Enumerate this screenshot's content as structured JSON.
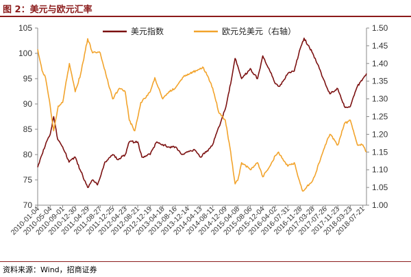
{
  "title": "图 2：美元与欧元汇率",
  "source": "资料来源：Wind，招商证券",
  "chart_data": {
    "type": "line",
    "title": "图 2：美元与欧元汇率",
    "legend_position": "top",
    "grid": false,
    "x_ticks": [
      "2010-01-04",
      "2010-05-04",
      "2010-09-01",
      "2010-12-30",
      "2011-04-29",
      "2011-08-27",
      "2011-12-25",
      "2012-04-23",
      "2012-08-21",
      "2012-12-19",
      "2013-04-18",
      "2013-08-16",
      "2013-12-14",
      "2014-04-13",
      "2014-08-11",
      "2014-12-09",
      "2015-04-08",
      "2015-08-06",
      "2015-12-04",
      "2016-04-02",
      "2016-07-31",
      "2016-11-28",
      "2017-03-28",
      "2017-07-26",
      "2017-11-23",
      "2018-03-23",
      "2018-07-21"
    ],
    "y_left": {
      "ylim": [
        70,
        105
      ],
      "ticks": [
        "70",
        "75",
        "80",
        "85",
        "90",
        "95",
        "100",
        "105"
      ]
    },
    "y_right": {
      "ylim": [
        1.0,
        1.5
      ],
      "ticks": [
        "1.00",
        "1.05",
        "1.10",
        "1.15",
        "1.20",
        "1.25",
        "1.30",
        "1.35",
        "1.40",
        "1.45",
        "1.50"
      ]
    },
    "series": [
      {
        "name": "美元指数",
        "axis": "left",
        "color": "#7B1010",
        "x": [
          "2010-01-04",
          "2010-03-01",
          "2010-05-04",
          "2010-06-07",
          "2010-07-15",
          "2010-09-01",
          "2010-11-01",
          "2010-12-30",
          "2011-02-15",
          "2011-04-29",
          "2011-06-15",
          "2011-08-01",
          "2011-08-27",
          "2011-10-10",
          "2011-12-25",
          "2012-02-10",
          "2012-04-23",
          "2012-06-01",
          "2012-08-21",
          "2012-09-30",
          "2012-12-19",
          "2013-02-20",
          "2013-04-18",
          "2013-06-15",
          "2013-08-16",
          "2013-10-20",
          "2013-12-14",
          "2014-02-15",
          "2014-04-13",
          "2014-06-10",
          "2014-08-11",
          "2014-10-10",
          "2014-12-09",
          "2015-01-30",
          "2015-03-13",
          "2015-04-08",
          "2015-05-15",
          "2015-08-06",
          "2015-10-15",
          "2015-12-04",
          "2016-02-01",
          "2016-04-02",
          "2016-05-15",
          "2016-07-31",
          "2016-10-01",
          "2016-11-28",
          "2017-01-03",
          "2017-03-28",
          "2017-05-30",
          "2017-07-26",
          "2017-09-08",
          "2017-11-23",
          "2018-01-25",
          "2018-03-23",
          "2018-05-30",
          "2018-07-21",
          "2018-08-25"
        ],
        "values": [
          77.5,
          81.0,
          84.0,
          87.5,
          83.0,
          81.5,
          78.5,
          79.5,
          77.0,
          73.5,
          75.0,
          74.0,
          75.5,
          78.5,
          80.0,
          79.0,
          80.0,
          82.5,
          82.5,
          79.5,
          80.0,
          82.5,
          82.0,
          81.5,
          81.5,
          80.0,
          80.5,
          81.0,
          79.5,
          80.5,
          82.0,
          85.5,
          89.0,
          94.0,
          99.0,
          97.5,
          95.0,
          97.0,
          95.0,
          99.5,
          97.0,
          94.0,
          93.5,
          96.0,
          96.5,
          101.0,
          103.0,
          100.0,
          97.0,
          94.0,
          92.0,
          93.0,
          89.5,
          89.5,
          93.5,
          95.0,
          96.0
        ]
      },
      {
        "name": "欧元兑美元（右轴）",
        "axis": "right",
        "color": "#F2A32B",
        "x": [
          "2010-01-04",
          "2010-02-15",
          "2010-03-20",
          "2010-05-04",
          "2010-06-07",
          "2010-07-20",
          "2010-09-01",
          "2010-11-04",
          "2010-12-30",
          "2011-02-20",
          "2011-04-29",
          "2011-06-15",
          "2011-08-27",
          "2011-10-20",
          "2011-12-25",
          "2012-02-28",
          "2012-04-23",
          "2012-06-01",
          "2012-07-24",
          "2012-09-20",
          "2012-12-19",
          "2013-02-01",
          "2013-04-18",
          "2013-06-15",
          "2013-08-16",
          "2013-10-25",
          "2013-12-14",
          "2014-03-15",
          "2014-05-06",
          "2014-07-01",
          "2014-08-11",
          "2014-10-10",
          "2014-12-09",
          "2015-01-30",
          "2015-03-13",
          "2015-04-08",
          "2015-05-15",
          "2015-08-06",
          "2015-10-15",
          "2015-12-04",
          "2016-02-10",
          "2016-04-02",
          "2016-05-03",
          "2016-07-31",
          "2016-10-01",
          "2016-11-28",
          "2016-12-20",
          "2017-03-28",
          "2017-05-30",
          "2017-07-26",
          "2017-09-08",
          "2017-11-23",
          "2018-01-25",
          "2018-03-23",
          "2018-05-30",
          "2018-07-21",
          "2018-08-25"
        ],
        "values": [
          1.44,
          1.38,
          1.36,
          1.28,
          1.21,
          1.28,
          1.29,
          1.4,
          1.32,
          1.37,
          1.47,
          1.43,
          1.43,
          1.37,
          1.3,
          1.33,
          1.32,
          1.24,
          1.21,
          1.29,
          1.32,
          1.36,
          1.3,
          1.32,
          1.33,
          1.36,
          1.37,
          1.38,
          1.39,
          1.36,
          1.33,
          1.26,
          1.24,
          1.15,
          1.06,
          1.07,
          1.12,
          1.1,
          1.12,
          1.08,
          1.11,
          1.14,
          1.15,
          1.11,
          1.12,
          1.06,
          1.04,
          1.07,
          1.12,
          1.17,
          1.2,
          1.17,
          1.23,
          1.24,
          1.17,
          1.17,
          1.15
        ]
      }
    ]
  }
}
